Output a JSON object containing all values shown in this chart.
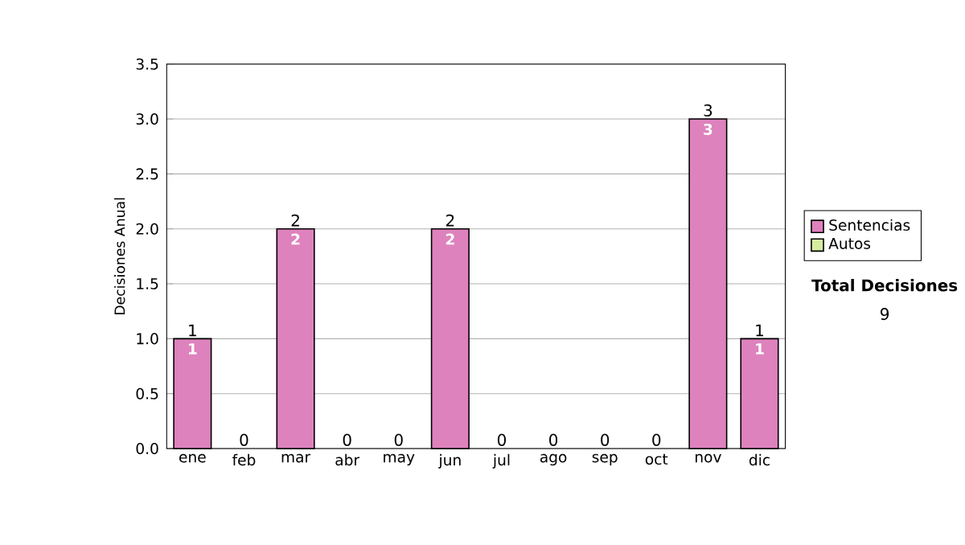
{
  "chart_data": {
    "type": "bar",
    "stacked": true,
    "ylabel": "Decisiones Anual",
    "categories": [
      "ene",
      "feb",
      "mar",
      "abr",
      "may",
      "jun",
      "jul",
      "ago",
      "sep",
      "oct",
      "nov",
      "dic"
    ],
    "series": [
      {
        "name": "Sentencias",
        "color": "#de82bd",
        "values": [
          1,
          0,
          2,
          0,
          0,
          2,
          0,
          0,
          0,
          0,
          3,
          1
        ],
        "value_labels": [
          "1",
          null,
          "2",
          null,
          null,
          "2",
          null,
          null,
          null,
          null,
          "3",
          "1"
        ]
      },
      {
        "name": "Autos",
        "color": "#d6eba0",
        "values": [
          0,
          0,
          0,
          0,
          0,
          0,
          0,
          0,
          0,
          0,
          0,
          0
        ]
      }
    ],
    "totals": [
      "1",
      "0",
      "2",
      "0",
      "0",
      "2",
      "0",
      "0",
      "0",
      "0",
      "3",
      "1"
    ],
    "ylim": [
      0,
      3.5
    ],
    "yticks": [
      {
        "value": 0,
        "label": "0.0"
      },
      {
        "value": 0.5,
        "label": "0.5"
      },
      {
        "value": 1,
        "label": "1.0"
      },
      {
        "value": 1.5,
        "label": "1.5"
      },
      {
        "value": 2,
        "label": "2.0"
      },
      {
        "value": 2.5,
        "label": "2.5"
      },
      {
        "value": 3,
        "label": "3.0"
      },
      {
        "value": 3.5,
        "label": "3.5"
      }
    ],
    "grid": "y",
    "legend": "right",
    "annotations": [
      "Total Decisiones",
      "9"
    ]
  }
}
